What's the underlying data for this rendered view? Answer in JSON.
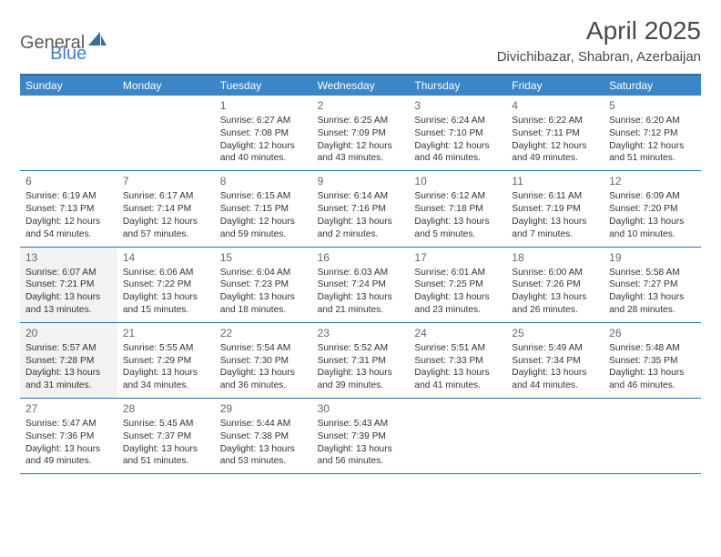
{
  "logo": {
    "part1": "General",
    "part2": "Blue"
  },
  "title": "April 2025",
  "subtitle": "Divichibazar, Shabran, Azerbaijan",
  "colors": {
    "header_bg": "#3b86c7",
    "header_text": "#ffffff",
    "rule": "#2f6fa8",
    "shade": "#f2f2f2",
    "logo_gray": "#5a5a5a",
    "logo_blue": "#3b7fc4"
  },
  "day_names": [
    "Sunday",
    "Monday",
    "Tuesday",
    "Wednesday",
    "Thursday",
    "Friday",
    "Saturday"
  ],
  "weeks": [
    [
      {
        "num": "",
        "sunrise": "",
        "sunset": "",
        "daylight": "",
        "shaded": false
      },
      {
        "num": "",
        "sunrise": "",
        "sunset": "",
        "daylight": "",
        "shaded": false
      },
      {
        "num": "1",
        "sunrise": "Sunrise: 6:27 AM",
        "sunset": "Sunset: 7:08 PM",
        "daylight": "Daylight: 12 hours and 40 minutes.",
        "shaded": false
      },
      {
        "num": "2",
        "sunrise": "Sunrise: 6:25 AM",
        "sunset": "Sunset: 7:09 PM",
        "daylight": "Daylight: 12 hours and 43 minutes.",
        "shaded": false
      },
      {
        "num": "3",
        "sunrise": "Sunrise: 6:24 AM",
        "sunset": "Sunset: 7:10 PM",
        "daylight": "Daylight: 12 hours and 46 minutes.",
        "shaded": false
      },
      {
        "num": "4",
        "sunrise": "Sunrise: 6:22 AM",
        "sunset": "Sunset: 7:11 PM",
        "daylight": "Daylight: 12 hours and 49 minutes.",
        "shaded": false
      },
      {
        "num": "5",
        "sunrise": "Sunrise: 6:20 AM",
        "sunset": "Sunset: 7:12 PM",
        "daylight": "Daylight: 12 hours and 51 minutes.",
        "shaded": false
      }
    ],
    [
      {
        "num": "6",
        "sunrise": "Sunrise: 6:19 AM",
        "sunset": "Sunset: 7:13 PM",
        "daylight": "Daylight: 12 hours and 54 minutes.",
        "shaded": false
      },
      {
        "num": "7",
        "sunrise": "Sunrise: 6:17 AM",
        "sunset": "Sunset: 7:14 PM",
        "daylight": "Daylight: 12 hours and 57 minutes.",
        "shaded": false
      },
      {
        "num": "8",
        "sunrise": "Sunrise: 6:15 AM",
        "sunset": "Sunset: 7:15 PM",
        "daylight": "Daylight: 12 hours and 59 minutes.",
        "shaded": false
      },
      {
        "num": "9",
        "sunrise": "Sunrise: 6:14 AM",
        "sunset": "Sunset: 7:16 PM",
        "daylight": "Daylight: 13 hours and 2 minutes.",
        "shaded": false
      },
      {
        "num": "10",
        "sunrise": "Sunrise: 6:12 AM",
        "sunset": "Sunset: 7:18 PM",
        "daylight": "Daylight: 13 hours and 5 minutes.",
        "shaded": false
      },
      {
        "num": "11",
        "sunrise": "Sunrise: 6:11 AM",
        "sunset": "Sunset: 7:19 PM",
        "daylight": "Daylight: 13 hours and 7 minutes.",
        "shaded": false
      },
      {
        "num": "12",
        "sunrise": "Sunrise: 6:09 AM",
        "sunset": "Sunset: 7:20 PM",
        "daylight": "Daylight: 13 hours and 10 minutes.",
        "shaded": false
      }
    ],
    [
      {
        "num": "13",
        "sunrise": "Sunrise: 6:07 AM",
        "sunset": "Sunset: 7:21 PM",
        "daylight": "Daylight: 13 hours and 13 minutes.",
        "shaded": true
      },
      {
        "num": "14",
        "sunrise": "Sunrise: 6:06 AM",
        "sunset": "Sunset: 7:22 PM",
        "daylight": "Daylight: 13 hours and 15 minutes.",
        "shaded": false
      },
      {
        "num": "15",
        "sunrise": "Sunrise: 6:04 AM",
        "sunset": "Sunset: 7:23 PM",
        "daylight": "Daylight: 13 hours and 18 minutes.",
        "shaded": false
      },
      {
        "num": "16",
        "sunrise": "Sunrise: 6:03 AM",
        "sunset": "Sunset: 7:24 PM",
        "daylight": "Daylight: 13 hours and 21 minutes.",
        "shaded": false
      },
      {
        "num": "17",
        "sunrise": "Sunrise: 6:01 AM",
        "sunset": "Sunset: 7:25 PM",
        "daylight": "Daylight: 13 hours and 23 minutes.",
        "shaded": false
      },
      {
        "num": "18",
        "sunrise": "Sunrise: 6:00 AM",
        "sunset": "Sunset: 7:26 PM",
        "daylight": "Daylight: 13 hours and 26 minutes.",
        "shaded": false
      },
      {
        "num": "19",
        "sunrise": "Sunrise: 5:58 AM",
        "sunset": "Sunset: 7:27 PM",
        "daylight": "Daylight: 13 hours and 28 minutes.",
        "shaded": false
      }
    ],
    [
      {
        "num": "20",
        "sunrise": "Sunrise: 5:57 AM",
        "sunset": "Sunset: 7:28 PM",
        "daylight": "Daylight: 13 hours and 31 minutes.",
        "shaded": true
      },
      {
        "num": "21",
        "sunrise": "Sunrise: 5:55 AM",
        "sunset": "Sunset: 7:29 PM",
        "daylight": "Daylight: 13 hours and 34 minutes.",
        "shaded": false
      },
      {
        "num": "22",
        "sunrise": "Sunrise: 5:54 AM",
        "sunset": "Sunset: 7:30 PM",
        "daylight": "Daylight: 13 hours and 36 minutes.",
        "shaded": false
      },
      {
        "num": "23",
        "sunrise": "Sunrise: 5:52 AM",
        "sunset": "Sunset: 7:31 PM",
        "daylight": "Daylight: 13 hours and 39 minutes.",
        "shaded": false
      },
      {
        "num": "24",
        "sunrise": "Sunrise: 5:51 AM",
        "sunset": "Sunset: 7:33 PM",
        "daylight": "Daylight: 13 hours and 41 minutes.",
        "shaded": false
      },
      {
        "num": "25",
        "sunrise": "Sunrise: 5:49 AM",
        "sunset": "Sunset: 7:34 PM",
        "daylight": "Daylight: 13 hours and 44 minutes.",
        "shaded": false
      },
      {
        "num": "26",
        "sunrise": "Sunrise: 5:48 AM",
        "sunset": "Sunset: 7:35 PM",
        "daylight": "Daylight: 13 hours and 46 minutes.",
        "shaded": false
      }
    ],
    [
      {
        "num": "27",
        "sunrise": "Sunrise: 5:47 AM",
        "sunset": "Sunset: 7:36 PM",
        "daylight": "Daylight: 13 hours and 49 minutes.",
        "shaded": false
      },
      {
        "num": "28",
        "sunrise": "Sunrise: 5:45 AM",
        "sunset": "Sunset: 7:37 PM",
        "daylight": "Daylight: 13 hours and 51 minutes.",
        "shaded": false
      },
      {
        "num": "29",
        "sunrise": "Sunrise: 5:44 AM",
        "sunset": "Sunset: 7:38 PM",
        "daylight": "Daylight: 13 hours and 53 minutes.",
        "shaded": false
      },
      {
        "num": "30",
        "sunrise": "Sunrise: 5:43 AM",
        "sunset": "Sunset: 7:39 PM",
        "daylight": "Daylight: 13 hours and 56 minutes.",
        "shaded": false
      },
      {
        "num": "",
        "sunrise": "",
        "sunset": "",
        "daylight": "",
        "shaded": false
      },
      {
        "num": "",
        "sunrise": "",
        "sunset": "",
        "daylight": "",
        "shaded": false
      },
      {
        "num": "",
        "sunrise": "",
        "sunset": "",
        "daylight": "",
        "shaded": false
      }
    ]
  ]
}
